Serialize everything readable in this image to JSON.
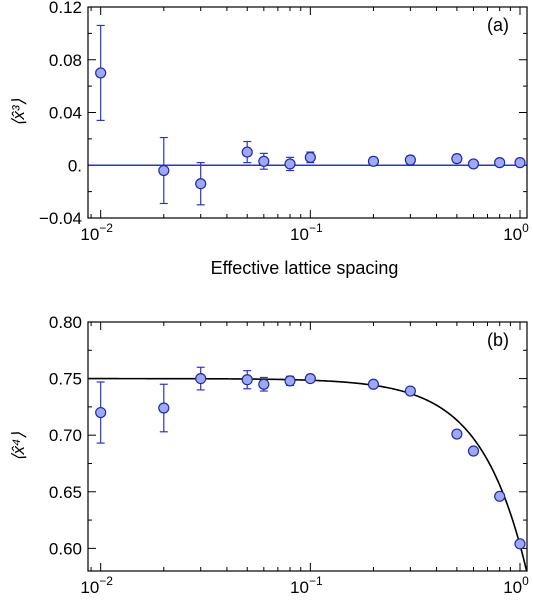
{
  "colors": {
    "marker_fill": "#9fa8f2",
    "marker_stroke": "#1f2aa8",
    "errorbar": "#2b36c4",
    "reference_line": "#2b36c4",
    "fit_curve": "#000000",
    "axes": "#000000",
    "background": "#ffffff"
  },
  "chart_data": [
    {
      "type": "scatter",
      "panel_label": "(a)",
      "xlabel": "Effective lattice spacing",
      "ylabel": "⟨x̂³⟩",
      "xscale": "log",
      "xlim": [
        0.0087,
        1.08
      ],
      "ylim": [
        -0.04,
        0.12
      ],
      "grid": false,
      "x_ticks": [
        {
          "value": 0.01,
          "base": "10",
          "exp": "−2"
        },
        {
          "value": 0.1,
          "base": "10",
          "exp": "−1"
        },
        {
          "value": 1,
          "base": "10",
          "exp": "0"
        }
      ],
      "y_ticks": [
        {
          "value": -0.04,
          "label": "−0.04"
        },
        {
          "value": 0,
          "label": "0."
        },
        {
          "value": 0.04,
          "label": "0.04"
        },
        {
          "value": 0.08,
          "label": "0.08"
        },
        {
          "value": 0.12,
          "label": "0.12"
        }
      ],
      "reference_line": {
        "y": 0
      },
      "points": [
        {
          "x": 0.01,
          "y": 0.07,
          "err": 0.036
        },
        {
          "x": 0.02,
          "y": -0.004,
          "err": 0.025
        },
        {
          "x": 0.03,
          "y": -0.014,
          "err": 0.016
        },
        {
          "x": 0.05,
          "y": 0.01,
          "err": 0.008
        },
        {
          "x": 0.06,
          "y": 0.003,
          "err": 0.006
        },
        {
          "x": 0.08,
          "y": 0.001,
          "err": 0.005
        },
        {
          "x": 0.1,
          "y": 0.006,
          "err": 0.004
        },
        {
          "x": 0.2,
          "y": 0.003,
          "err": 0.003
        },
        {
          "x": 0.3,
          "y": 0.004,
          "err": 0.003
        },
        {
          "x": 0.5,
          "y": 0.005,
          "err": 0.003
        },
        {
          "x": 0.6,
          "y": 0.001,
          "err": 0.002
        },
        {
          "x": 0.8,
          "y": 0.002,
          "err": 0.002
        },
        {
          "x": 1.0,
          "y": 0.002,
          "err": 0.002
        }
      ]
    },
    {
      "type": "scatter",
      "panel_label": "(b)",
      "xlabel": "Effective lattice spacing",
      "ylabel": "⟨x̂⁴⟩",
      "xscale": "log",
      "xlim": [
        0.0087,
        1.08
      ],
      "ylim": [
        0.58,
        0.8
      ],
      "grid": false,
      "x_ticks": [
        {
          "value": 0.01,
          "base": "10",
          "exp": "−2"
        },
        {
          "value": 0.1,
          "base": "10",
          "exp": "−1"
        },
        {
          "value": 1,
          "base": "10",
          "exp": "0"
        }
      ],
      "y_ticks": [
        {
          "value": 0.6,
          "label": "0.60"
        },
        {
          "value": 0.65,
          "label": "0.65"
        },
        {
          "value": 0.7,
          "label": "0.70"
        },
        {
          "value": 0.75,
          "label": "0.75"
        },
        {
          "value": 0.8,
          "label": "0.80"
        }
      ],
      "fit_curve": {
        "form": "0.75 - 0.147*x^2",
        "asymptote": 0.75
      },
      "points": [
        {
          "x": 0.01,
          "y": 0.72,
          "err": 0.027
        },
        {
          "x": 0.02,
          "y": 0.724,
          "err": 0.021
        },
        {
          "x": 0.03,
          "y": 0.75,
          "err": 0.01
        },
        {
          "x": 0.05,
          "y": 0.749,
          "err": 0.008
        },
        {
          "x": 0.06,
          "y": 0.745,
          "err": 0.006
        },
        {
          "x": 0.08,
          "y": 0.748,
          "err": 0.004
        },
        {
          "x": 0.1,
          "y": 0.75,
          "err": 0.003
        },
        {
          "x": 0.2,
          "y": 0.745,
          "err": 0.002
        },
        {
          "x": 0.3,
          "y": 0.739,
          "err": 0.002
        },
        {
          "x": 0.5,
          "y": 0.701,
          "err": 0.002
        },
        {
          "x": 0.6,
          "y": 0.686,
          "err": 0.002
        },
        {
          "x": 0.8,
          "y": 0.646,
          "err": 0.002
        },
        {
          "x": 1.0,
          "y": 0.604,
          "err": 0.002
        }
      ]
    }
  ]
}
